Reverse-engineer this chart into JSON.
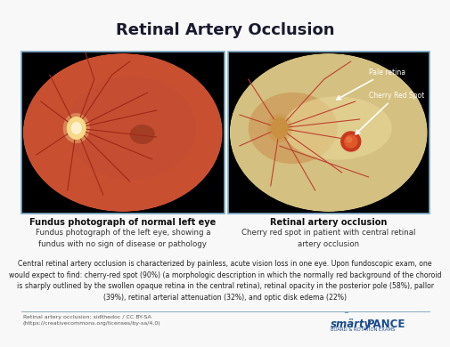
{
  "title": "Retinal Artery Occlusion",
  "title_fontsize": 13,
  "title_color": "#1a1a2e",
  "bg_color": "#f8f8f8",
  "left_image_desc_bold": "Fundus photograph of normal left eye",
  "left_image_desc": "Fundus photograph of the left eye, showing a\nfundus with no sign of disease or pathology",
  "right_image_desc_bold": "Retinal artery occlusion",
  "right_image_desc": "Cherry red spot in patient with central retinal\nartery occlusion",
  "body_text": "Central retinal artery occlusion is characterized by painless, acute vision loss in one eye. Upon fundoscopic exam, one\nwould expect to find: cherry-red spot (90%) (a morphologic description in which the normally red background of the choroid\nis sharply outlined by the swollen opaque retina in the central retina), retinal opacity in the posterior pole (58%), pallor\n(39%), retinal arterial attenuation (32%), and optic disk edema (22%)",
  "credit_text": "Retinal artery occlusion: sidthedoc / CC BY-SA\n(https://creativecommons.org/licenses/by-sa/4.0)",
  "label_pale": "Pale retina",
  "label_cherry": "Cherry Red Spot",
  "border_color": "#7aaac8",
  "left_bg": "#c85030",
  "left_mid": "#c04838",
  "left_dark": "#9a3020",
  "right_bg_pale": "#d4b87a",
  "right_bg_orange": "#c87840",
  "optic_disk_left": "#f5d888",
  "optic_core_left": "#ffffff",
  "cherry_outer": "#c83820",
  "cherry_inner": "#e05828",
  "vessel_left": "#a02818",
  "vessel_right": "#c04030",
  "smarty_blue": "#1a4a8a",
  "pance_blue": "#1a4a8a",
  "divider_color": "#8aaabb"
}
